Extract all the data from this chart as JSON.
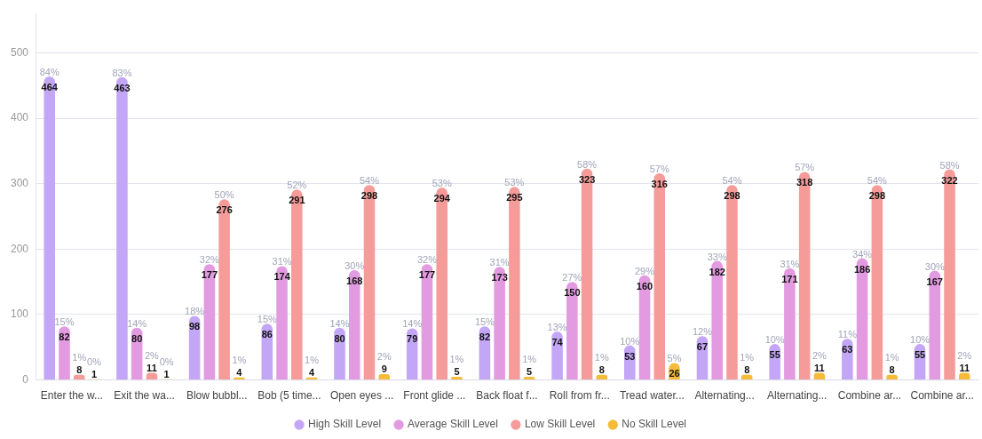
{
  "chart_data": {
    "type": "bar",
    "categories": [
      "Enter the w...",
      "Exit the wa...",
      "Blow bubbl...",
      "Bob (5 time...",
      "Open eyes ...",
      "Front glide ...",
      "Back float f...",
      "Roll from fr...",
      "Tread water...",
      "Alternating...",
      "Alternating...",
      "Combine ar...",
      "Combine ar..."
    ],
    "series": [
      {
        "name": "High Skill Level",
        "color": "#c4a6f7",
        "values": [
          464,
          463,
          98,
          86,
          80,
          79,
          82,
          74,
          53,
          67,
          55,
          63,
          55
        ],
        "value_labels": [
          "84%\n464",
          "83%\n463",
          "18%\n98",
          "15%\n86",
          "14%\n80",
          "14%\n79",
          "15%\n82",
          "13%\n74",
          "10%\n53",
          "12%\n67",
          "10%\n55",
          "11%\n63",
          "10%\n55"
        ]
      },
      {
        "name": "Average Skill Level",
        "color": "#e29be0",
        "values": [
          82,
          80,
          177,
          174,
          168,
          177,
          173,
          150,
          160,
          182,
          171,
          186,
          167
        ],
        "value_labels": [
          "15%\n82",
          "14%\n80",
          "32%\n177",
          "31%\n174",
          "30%\n168",
          "32%\n177",
          "31%\n173",
          "27%\n150",
          "29%\n160",
          "33%\n182",
          "31%\n171",
          "34%\n186",
          "30%\n167"
        ]
      },
      {
        "name": "Low Skill Level",
        "color": "#f59c9a",
        "values": [
          8,
          11,
          276,
          291,
          298,
          294,
          295,
          323,
          316,
          298,
          318,
          298,
          322
        ],
        "value_labels": [
          "1%\n8",
          "2%\n11",
          "50%\n276",
          "52%\n291",
          "54%\n298",
          "53%\n294",
          "53%\n295",
          "58%\n323",
          "57%\n316",
          "54%\n298",
          "57%\n318",
          "54%\n298",
          "58%\n322"
        ]
      },
      {
        "name": "No Skill Level",
        "color": "#f7bb3a",
        "values": [
          1,
          1,
          4,
          4,
          9,
          5,
          5,
          8,
          26,
          8,
          11,
          8,
          11
        ],
        "value_labels": [
          "0%\n1",
          "0%\n1",
          "1%\n4",
          "1%\n4",
          "2%\n9",
          "1%\n5",
          "1%\n5",
          "1%\n8",
          "5%\n26",
          "1%\n8",
          "2%\n11",
          "1%\n8",
          "2%\n11"
        ]
      }
    ],
    "ylim": [
      0,
      560
    ],
    "yticks": [
      0,
      100,
      200,
      300,
      400,
      500
    ],
    "grid": "y",
    "legend": "bottom"
  }
}
